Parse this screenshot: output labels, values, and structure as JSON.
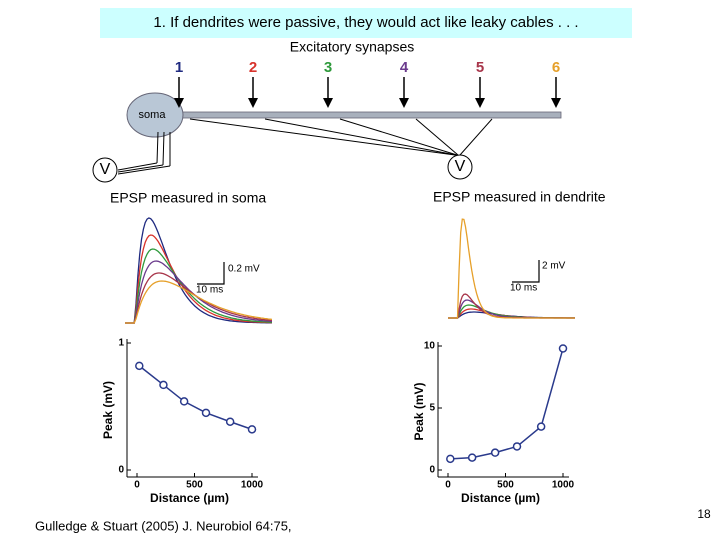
{
  "header": {
    "title": "1.  If dendrites were passive, they would act like leaky cables . . ."
  },
  "diagram": {
    "synapse_label": "Excitatory synapses",
    "synapses": [
      "1",
      "2",
      "3",
      "4",
      "5",
      "6"
    ],
    "soma": "soma",
    "electrode_left": "V",
    "electrode_right": "V",
    "caption_left": "EPSP measured in soma",
    "caption_right": "EPSP measured in dendrite",
    "scale_left": {
      "amplitude": "0.2 mV",
      "time": "10 ms"
    },
    "scale_right": {
      "amplitude": "2 mV",
      "time": "10 ms"
    }
  },
  "chart_data": [
    {
      "type": "line",
      "xlabel": "Distance (µm)",
      "ylabel": "Peak (mV)",
      "x": [
        20,
        230,
        410,
        600,
        810,
        1000
      ],
      "values": [
        0.82,
        0.67,
        0.54,
        0.45,
        0.38,
        0.32
      ],
      "xlim": [
        0,
        1000
      ],
      "xticks": [
        0,
        500,
        1000
      ],
      "ylim": [
        0,
        1
      ],
      "yticks": [
        0,
        1
      ],
      "color": "#2a3a8c"
    },
    {
      "type": "line",
      "xlabel": "Distance (µm)",
      "ylabel": "Peak (mV)",
      "x": [
        20,
        210,
        410,
        600,
        810,
        1000
      ],
      "values": [
        0.9,
        1.0,
        1.4,
        1.9,
        3.5,
        9.8
      ],
      "xlim": [
        0,
        1000
      ],
      "xticks": [
        0,
        500,
        1000
      ],
      "ylim": [
        0,
        10
      ],
      "yticks": [
        0,
        5,
        10
      ],
      "color": "#2a3a8c"
    }
  ],
  "footer": {
    "citation": "Gulledge & Stuart (2005) J. Neurobiol 64:75,",
    "page": "18"
  }
}
